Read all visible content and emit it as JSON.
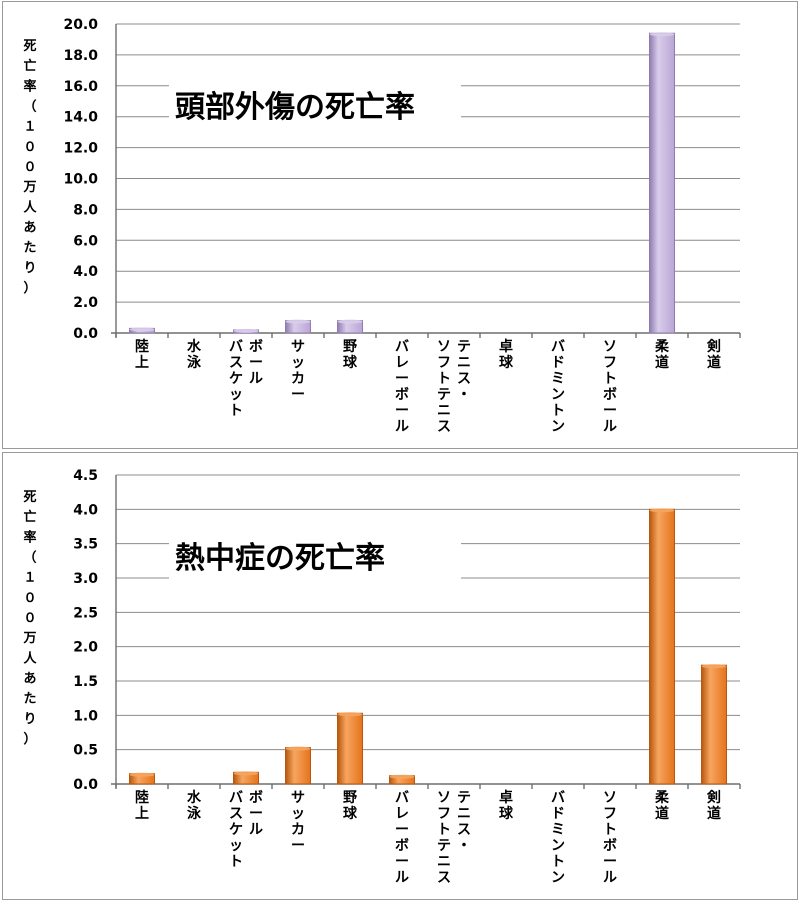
{
  "chart_data": [
    {
      "type": "bar",
      "title": "頭部外傷の死亡率",
      "ylabel": "死亡率（１００万人あたり）",
      "categories": [
        "陸上",
        "水泳",
        "バスケットボール",
        "サッカー",
        "野球",
        "バレーボール",
        "ソフトテニス・テニス",
        "卓球",
        "バドミントン",
        "ソフトボール",
        "柔道",
        "剣道"
      ],
      "category_lines": [
        [
          "陸上"
        ],
        [
          "水泳"
        ],
        [
          "バスケット",
          "ボール"
        ],
        [
          "サッカー"
        ],
        [
          "野球"
        ],
        [
          "バレーボール"
        ],
        [
          "ソフトテニス",
          "テニス・"
        ],
        [
          "卓球"
        ],
        [
          "バドミントン"
        ],
        [
          "ソフトボール"
        ],
        [
          "柔道"
        ],
        [
          "剣道"
        ]
      ],
      "values": [
        0.3,
        0,
        0.2,
        0.8,
        0.8,
        0,
        0,
        0,
        0,
        0,
        19.4,
        0
      ],
      "ylim": [
        0,
        20
      ],
      "yticks": [
        "0.0",
        "2.0",
        "4.0",
        "6.0",
        "8.0",
        "10.0",
        "12.0",
        "14.0",
        "16.0",
        "18.0",
        "20.0"
      ],
      "grid": true,
      "colors": {
        "bar": "#b9a5d4",
        "bar_edge": "#8f7bb0",
        "bar_light": "#d9cdea"
      }
    },
    {
      "type": "bar",
      "title": "熱中症の死亡率",
      "ylabel": "死亡率（１００万人あたり）",
      "categories": [
        "陸上",
        "水泳",
        "バスケットボール",
        "サッカー",
        "野球",
        "バレーボール",
        "ソフトテニス・テニス",
        "卓球",
        "バドミントン",
        "ソフトボール",
        "柔道",
        "剣道"
      ],
      "category_lines": [
        [
          "陸上"
        ],
        [
          "水泳"
        ],
        [
          "バスケット",
          "ボール"
        ],
        [
          "サッカー"
        ],
        [
          "野球"
        ],
        [
          "バレーボール"
        ],
        [
          "ソフトテニス",
          "テニス・"
        ],
        [
          "卓球"
        ],
        [
          "バドミントン"
        ],
        [
          "ソフトボール"
        ],
        [
          "柔道"
        ],
        [
          "剣道"
        ]
      ],
      "values": [
        0.15,
        0,
        0.17,
        0.53,
        1.03,
        0.12,
        0,
        0,
        0,
        0,
        4.0,
        1.73
      ],
      "ylim": [
        0,
        4.5
      ],
      "yticks": [
        "0.0",
        "0.5",
        "1.0",
        "1.5",
        "2.0",
        "2.5",
        "3.0",
        "3.5",
        "4.0",
        "4.5"
      ],
      "grid": true,
      "colors": {
        "bar": "#e5741c",
        "bar_edge": "#b8570d",
        "bar_light": "#f6a55f"
      }
    }
  ]
}
